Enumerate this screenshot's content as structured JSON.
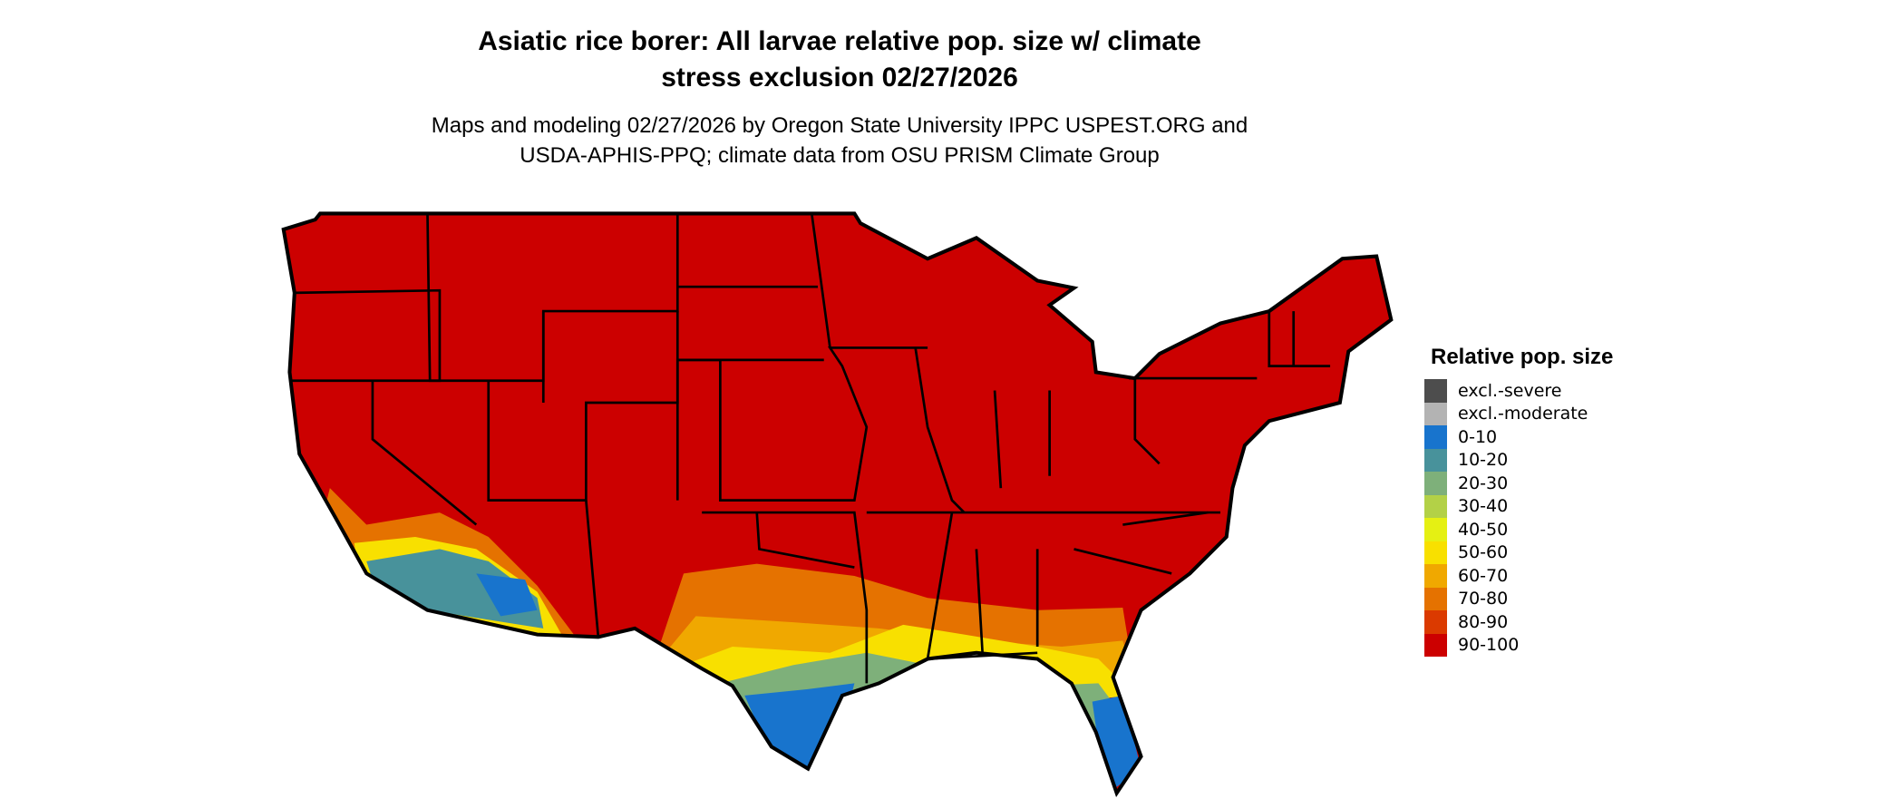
{
  "title_line1": "Asiatic rice borer: All larvae relative pop. size w/ climate",
  "title_line2": "stress exclusion 02/27/2026",
  "subtitle_line1": "Maps and modeling 02/27/2026 by Oregon State University IPPC USPEST.ORG and",
  "subtitle_line2": "USDA-APHIS-PPQ; climate data from OSU PRISM Climate Group",
  "legend": {
    "title": "Relative pop. size",
    "items": [
      {
        "label": "excl.-severe",
        "color": "#4d4d4d"
      },
      {
        "label": "excl.-moderate",
        "color": "#b3b3b3"
      },
      {
        "label": "0-10",
        "color": "#1874cd"
      },
      {
        "label": "10-20",
        "color": "#48929b"
      },
      {
        "label": "20-30",
        "color": "#7eb07a"
      },
      {
        "label": "30-40",
        "color": "#b3d147"
      },
      {
        "label": "40-50",
        "color": "#e5f013"
      },
      {
        "label": "50-60",
        "color": "#f8e000"
      },
      {
        "label": "60-70",
        "color": "#f0a800"
      },
      {
        "label": "70-80",
        "color": "#e57200"
      },
      {
        "label": "80-90",
        "color": "#db3a00"
      },
      {
        "label": "90-100",
        "color": "#cc0000"
      }
    ]
  }
}
